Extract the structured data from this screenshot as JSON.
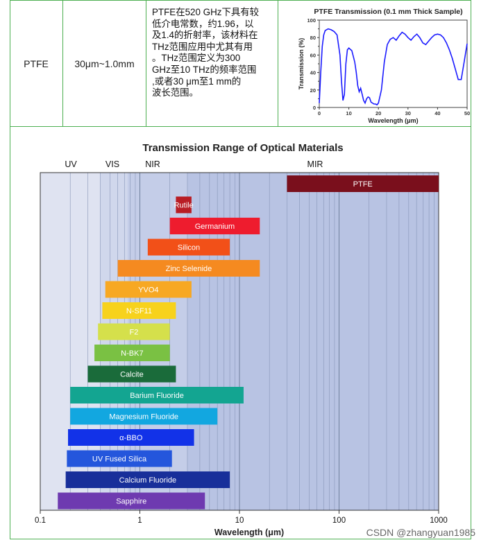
{
  "table": {
    "material": "PTFE",
    "range": "30μm~1.0mm",
    "description_lines": [
      "PTFE在520 GHz下具有较",
      "低介电常数，约1.96，以",
      "及1.4的折射率，该材料在",
      "THz范围应用中尤其有用",
      "。THz范围定义为300",
      "GHz至10 THz的频率范围",
      ",或者30 μm至1 mm的",
      "波长范围。"
    ]
  },
  "chart_data": [
    {
      "type": "line",
      "title": "PTFE Transmission (0.1 mm Thick Sample)",
      "xlabel": "Wavelength (μm)",
      "ylabel": "Transmission (%)",
      "xlim": [
        0,
        50
      ],
      "ylim": [
        0,
        100
      ],
      "xticks": [
        0,
        10,
        20,
        30,
        40,
        50
      ],
      "yticks": [
        0,
        10,
        20,
        30,
        40,
        50,
        60,
        70,
        80,
        90,
        100
      ],
      "series": [
        {
          "color": "#1a1aff",
          "x": [
            0,
            0.5,
            1,
            1.5,
            2,
            3,
            4,
            5,
            6,
            7,
            7.5,
            8,
            8.5,
            9,
            9.5,
            10,
            11,
            12,
            12.5,
            13,
            13.5,
            14,
            14.5,
            15,
            15.5,
            16,
            16.5,
            17,
            17.5,
            18,
            18.5,
            19,
            19.5,
            20,
            21,
            22,
            23,
            24,
            25,
            26,
            27,
            28,
            29,
            30,
            31,
            32,
            33,
            34,
            35,
            36,
            37,
            38,
            39,
            40,
            41,
            42,
            43,
            44,
            45,
            46,
            47,
            48,
            49,
            50
          ],
          "y": [
            5,
            40,
            70,
            83,
            88,
            90,
            89,
            87,
            83,
            60,
            30,
            8,
            15,
            50,
            66,
            68,
            65,
            52,
            40,
            25,
            18,
            22,
            15,
            8,
            5,
            10,
            12,
            11,
            6,
            5,
            4,
            4,
            3,
            5,
            20,
            52,
            72,
            78,
            80,
            77,
            82,
            86,
            84,
            80,
            77,
            81,
            84,
            80,
            74,
            72,
            76,
            80,
            83,
            84,
            83,
            80,
            74,
            66,
            56,
            44,
            32,
            32,
            52,
            73
          ]
        }
      ]
    },
    {
      "type": "bar",
      "title": "Transmission Range of Optical Materials",
      "xlabel": "Wavelength (μm)",
      "x_scale": "log",
      "xlim": [
        0.1,
        1000
      ],
      "xtick_labels": [
        "0.1",
        "1",
        "10",
        "100",
        "1000"
      ],
      "regions": [
        {
          "label": "UV",
          "from": 0.1,
          "to": 0.4
        },
        {
          "label": "VIS",
          "from": 0.4,
          "to": 0.75
        },
        {
          "label": "NIR",
          "from": 0.75,
          "to": 3
        },
        {
          "label": "MIR",
          "from": 3,
          "to": 1000
        }
      ],
      "materials": [
        {
          "name": "PTFE",
          "min": 30,
          "max": 1000,
          "color": "#7a0f1c"
        },
        {
          "name": "Rutile",
          "min": 2.3,
          "max": 3.3,
          "color": "#b91d24"
        },
        {
          "name": "Germanium",
          "min": 2,
          "max": 16,
          "color": "#ee1c2e"
        },
        {
          "name": "Silicon",
          "min": 1.2,
          "max": 8,
          "color": "#f25018"
        },
        {
          "name": "Zinc Selenide",
          "min": 0.6,
          "max": 16,
          "color": "#f58a20"
        },
        {
          "name": "YVO4",
          "min": 0.45,
          "max": 3.3,
          "color": "#f7a823"
        },
        {
          "name": "N-SF11",
          "min": 0.42,
          "max": 2.3,
          "color": "#f7d21c"
        },
        {
          "name": "F2",
          "min": 0.38,
          "max": 2,
          "color": "#d5e04b"
        },
        {
          "name": "N-BK7",
          "min": 0.35,
          "max": 2,
          "color": "#7ac143"
        },
        {
          "name": "Calcite",
          "min": 0.3,
          "max": 2.3,
          "color": "#1a6b3a"
        },
        {
          "name": "Barium Fluoride",
          "min": 0.2,
          "max": 11,
          "color": "#13a591"
        },
        {
          "name": "Magnesium Fluoride",
          "min": 0.2,
          "max": 6,
          "color": "#12a7e0"
        },
        {
          "name": "α-BBO",
          "min": 0.19,
          "max": 3.5,
          "color": "#1232e8"
        },
        {
          "name": "UV Fused Silica",
          "min": 0.185,
          "max": 2.1,
          "color": "#2456dc"
        },
        {
          "name": "Calcium Fluoride",
          "min": 0.18,
          "max": 8,
          "color": "#182f9a"
        },
        {
          "name": "Sapphire",
          "min": 0.15,
          "max": 4.5,
          "color": "#6e3ab0"
        }
      ]
    }
  ],
  "watermark": "CSDN @zhangyuan1985"
}
